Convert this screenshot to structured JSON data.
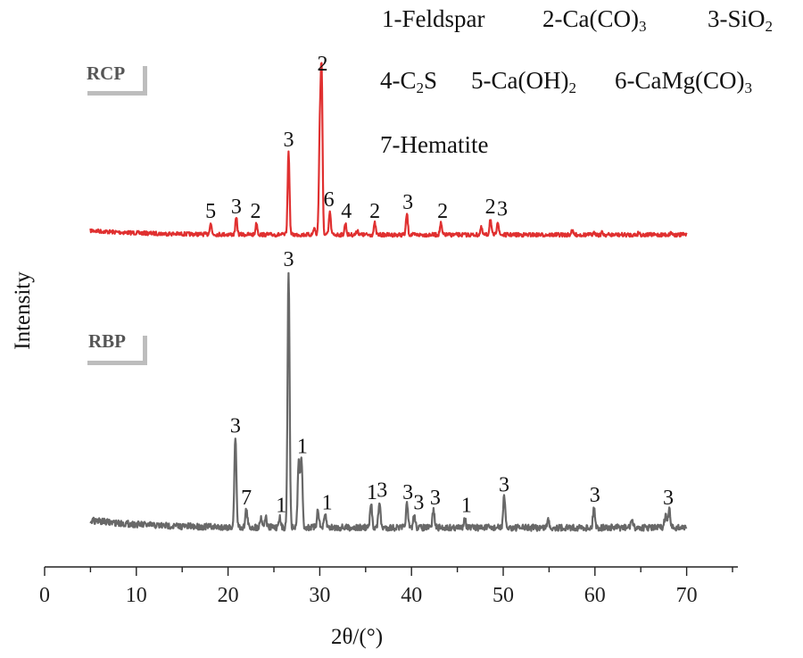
{
  "chart_data": {
    "type": "line",
    "xlabel": "2θ/(°)",
    "ylabel": "Intensity",
    "xlim": [
      0,
      75
    ],
    "xticks": [
      "0",
      "10",
      "20",
      "30",
      "40",
      "50",
      "60",
      "70"
    ],
    "legend": {
      "placement": "top-right",
      "entries": [
        {
          "num": "1",
          "text": "Feldspar"
        },
        {
          "num": "2",
          "text": "Ca(CO)3"
        },
        {
          "num": "3",
          "text": "SiO2"
        },
        {
          "num": "4",
          "text": "C2S"
        },
        {
          "num": "5",
          "text": "Ca(OH)2"
        },
        {
          "num": "6",
          "text": "CaMg(CO)3"
        },
        {
          "num": "7",
          "text": "Hematite"
        }
      ]
    },
    "series": [
      {
        "name": "RCP",
        "color": "#e03030",
        "baseline_rel": 0.0,
        "peaks": [
          {
            "x": 18.1,
            "h": 0.05
          },
          {
            "x": 20.9,
            "h": 0.07
          },
          {
            "x": 23.1,
            "h": 0.05
          },
          {
            "x": 26.6,
            "h": 0.36
          },
          {
            "x": 29.4,
            "h": 0.03
          },
          {
            "x": 30.0,
            "h": 0.42
          },
          {
            "x": 30.2,
            "h": 0.69
          },
          {
            "x": 31.1,
            "h": 0.1
          },
          {
            "x": 32.8,
            "h": 0.05
          },
          {
            "x": 34.1,
            "h": 0.02
          },
          {
            "x": 36.0,
            "h": 0.05
          },
          {
            "x": 39.5,
            "h": 0.09
          },
          {
            "x": 43.2,
            "h": 0.05
          },
          {
            "x": 47.6,
            "h": 0.03
          },
          {
            "x": 48.6,
            "h": 0.07
          },
          {
            "x": 49.4,
            "h": 0.06
          },
          {
            "x": 57.5,
            "h": 0.02
          },
          {
            "x": 60.0,
            "h": 0.01
          },
          {
            "x": 60.8,
            "h": 0.01
          },
          {
            "x": 64.8,
            "h": 0.01
          },
          {
            "x": 68.3,
            "h": 0.01
          }
        ],
        "labels": [
          {
            "x": 18.1,
            "text": "5"
          },
          {
            "x": 20.9,
            "text": "3"
          },
          {
            "x": 23.0,
            "text": "2"
          },
          {
            "x": 26.6,
            "text": "3"
          },
          {
            "x": 30.3,
            "text": "2"
          },
          {
            "x": 31.0,
            "text": "6"
          },
          {
            "x": 32.9,
            "text": "4"
          },
          {
            "x": 36.0,
            "text": "2"
          },
          {
            "x": 39.6,
            "text": "3"
          },
          {
            "x": 43.4,
            "text": "2"
          },
          {
            "x": 48.6,
            "text": "2"
          },
          {
            "x": 49.9,
            "text": "3"
          }
        ]
      },
      {
        "name": "RBP",
        "color": "#686868",
        "baseline_rel": 0.0,
        "peaks": [
          {
            "x": 20.8,
            "h": 0.35
          },
          {
            "x": 22.0,
            "h": 0.07
          },
          {
            "x": 23.6,
            "h": 0.04
          },
          {
            "x": 24.1,
            "h": 0.04
          },
          {
            "x": 25.6,
            "h": 0.04
          },
          {
            "x": 26.6,
            "h": 1.0
          },
          {
            "x": 27.7,
            "h": 0.25
          },
          {
            "x": 28.0,
            "h": 0.27
          },
          {
            "x": 29.8,
            "h": 0.07
          },
          {
            "x": 30.6,
            "h": 0.05
          },
          {
            "x": 35.6,
            "h": 0.09
          },
          {
            "x": 36.5,
            "h": 0.1
          },
          {
            "x": 39.5,
            "h": 0.09
          },
          {
            "x": 40.3,
            "h": 0.05
          },
          {
            "x": 42.4,
            "h": 0.07
          },
          {
            "x": 45.8,
            "h": 0.04
          },
          {
            "x": 50.1,
            "h": 0.12
          },
          {
            "x": 54.9,
            "h": 0.03
          },
          {
            "x": 59.9,
            "h": 0.08
          },
          {
            "x": 64.0,
            "h": 0.03
          },
          {
            "x": 67.7,
            "h": 0.05
          },
          {
            "x": 68.1,
            "h": 0.07
          }
        ],
        "labels": [
          {
            "x": 20.8,
            "text": "3"
          },
          {
            "x": 22.0,
            "text": "7"
          },
          {
            "x": 25.8,
            "text": "1"
          },
          {
            "x": 26.6,
            "text": "3"
          },
          {
            "x": 28.1,
            "text": "1"
          },
          {
            "x": 30.8,
            "text": "1"
          },
          {
            "x": 35.7,
            "text": "1"
          },
          {
            "x": 36.8,
            "text": "3"
          },
          {
            "x": 39.6,
            "text": "3"
          },
          {
            "x": 40.8,
            "text": "3"
          },
          {
            "x": 42.6,
            "text": "3"
          },
          {
            "x": 46.0,
            "text": "1"
          },
          {
            "x": 50.1,
            "text": "3"
          },
          {
            "x": 60.0,
            "text": "3"
          },
          {
            "x": 68.0,
            "text": "3"
          }
        ]
      }
    ]
  }
}
